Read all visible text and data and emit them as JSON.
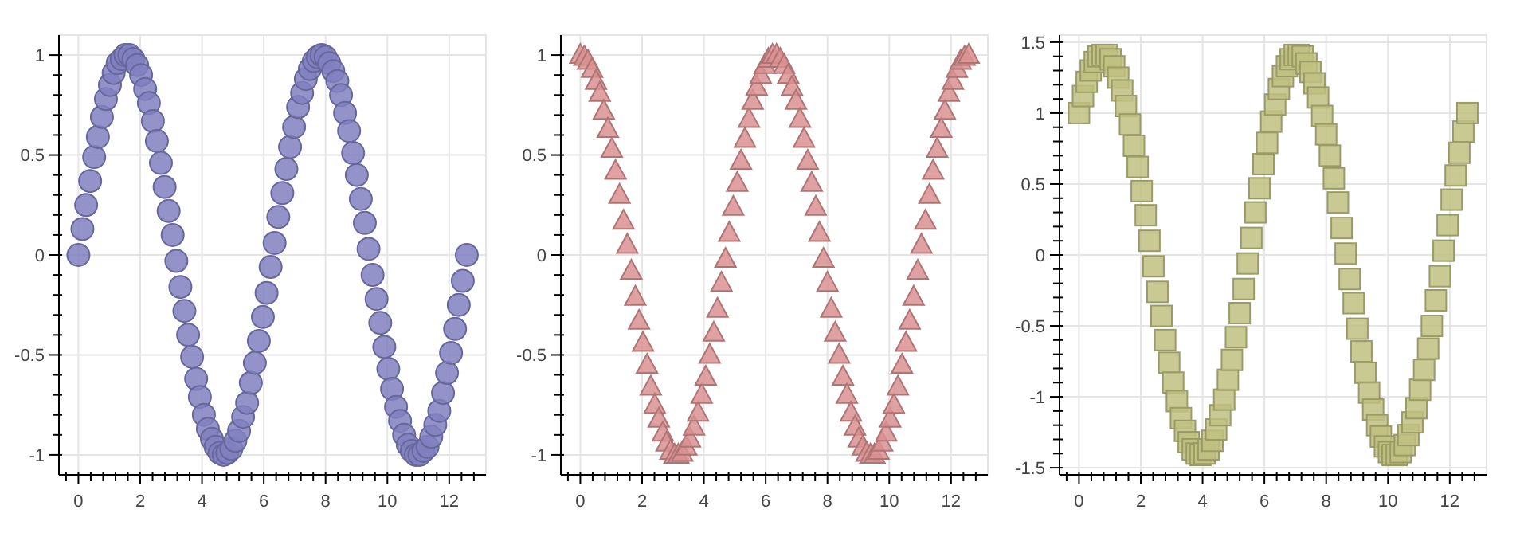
{
  "chart_data": [
    {
      "type": "scatter",
      "marker": "circle",
      "grid": true,
      "xlim": [
        -0.63,
        13.19
      ],
      "ylim": [
        -1.1,
        1.1
      ],
      "xticks": [
        {
          "value": -0.4,
          "label": null
        },
        0,
        {
          "value": 0.4,
          "label": null
        },
        {
          "value": 0.8,
          "label": null
        },
        {
          "value": 1.2,
          "label": null
        },
        {
          "value": 1.6,
          "label": null
        },
        2,
        {
          "value": 2.4,
          "label": null
        },
        {
          "value": 2.8,
          "label": null
        },
        {
          "value": 3.2,
          "label": null
        },
        {
          "value": 3.6,
          "label": null
        },
        4,
        {
          "value": 4.4,
          "label": null
        },
        {
          "value": 4.8,
          "label": null
        },
        {
          "value": 5.2,
          "label": null
        },
        {
          "value": 5.6,
          "label": null
        },
        6,
        {
          "value": 6.4,
          "label": null
        },
        {
          "value": 6.8,
          "label": null
        },
        {
          "value": 7.2,
          "label": null
        },
        {
          "value": 7.6,
          "label": null
        },
        8,
        {
          "value": 8.4,
          "label": null
        },
        {
          "value": 8.8,
          "label": null
        },
        {
          "value": 9.2,
          "label": null
        },
        {
          "value": 9.6,
          "label": null
        },
        10,
        {
          "value": 10.4,
          "label": null
        },
        {
          "value": 10.8,
          "label": null
        },
        {
          "value": 11.2,
          "label": null
        },
        {
          "value": 11.6,
          "label": null
        },
        12,
        {
          "value": 12.4,
          "label": null
        },
        {
          "value": 12.8,
          "label": null
        }
      ],
      "yticks": [
        -1,
        {
          "value": -0.9,
          "label": null
        },
        {
          "value": -0.8,
          "label": null
        },
        {
          "value": -0.7,
          "label": null
        },
        {
          "value": -0.6,
          "label": null
        },
        -0.5,
        {
          "value": -0.4,
          "label": null
        },
        {
          "value": -0.3,
          "label": null
        },
        {
          "value": -0.2,
          "label": null
        },
        {
          "value": -0.1,
          "label": null
        },
        0,
        {
          "value": 0.1,
          "label": null
        },
        {
          "value": 0.2,
          "label": null
        },
        {
          "value": 0.3,
          "label": null
        },
        {
          "value": 0.4,
          "label": null
        },
        0.5,
        {
          "value": 0.6,
          "label": null
        },
        {
          "value": 0.7,
          "label": null
        },
        {
          "value": 0.8,
          "label": null
        },
        {
          "value": 0.9,
          "label": null
        },
        1
      ],
      "x": [
        0,
        0.13,
        0.25,
        0.38,
        0.51,
        0.63,
        0.76,
        0.89,
        1.02,
        1.14,
        1.27,
        1.4,
        1.52,
        1.65,
        1.78,
        1.9,
        2.03,
        2.16,
        2.28,
        2.41,
        2.54,
        2.67,
        2.79,
        2.92,
        3.05,
        3.17,
        3.3,
        3.43,
        3.55,
        3.68,
        3.81,
        3.93,
        4.06,
        4.19,
        4.32,
        4.44,
        4.57,
        4.7,
        4.82,
        4.95,
        5.08,
        5.2,
        5.33,
        5.46,
        5.58,
        5.71,
        5.84,
        5.97,
        6.09,
        6.22,
        6.35,
        6.47,
        6.6,
        6.73,
        6.85,
        6.98,
        7.11,
        7.24,
        7.36,
        7.49,
        7.62,
        7.74,
        7.87,
        8,
        8.12,
        8.25,
        8.38,
        8.5,
        8.63,
        8.76,
        8.89,
        9.01,
        9.14,
        9.27,
        9.39,
        9.52,
        9.65,
        9.77,
        9.9,
        10.03,
        10.15,
        10.28,
        10.41,
        10.54,
        10.66,
        10.79,
        10.92,
        11.04,
        11.17,
        11.3,
        11.42,
        11.55,
        11.68,
        11.8,
        11.93,
        12.06,
        12.19,
        12.31,
        12.44,
        12.57
      ],
      "series": [
        {
          "color": "#8080c0",
          "values": [
            0,
            0.13,
            0.25,
            0.37,
            0.49,
            0.59,
            0.69,
            0.78,
            0.85,
            0.91,
            0.96,
            0.98,
            1,
            1,
            0.98,
            0.95,
            0.9,
            0.83,
            0.76,
            0.67,
            0.57,
            0.46,
            0.34,
            0.22,
            0.1,
            -0.03,
            -0.16,
            -0.28,
            -0.4,
            -0.51,
            -0.62,
            -0.71,
            -0.8,
            -0.87,
            -0.92,
            -0.96,
            -0.99,
            -1,
            -0.99,
            -0.97,
            -0.93,
            -0.88,
            -0.81,
            -0.74,
            -0.64,
            -0.54,
            -0.43,
            -0.31,
            -0.19,
            -0.06,
            0.06,
            0.19,
            0.31,
            0.43,
            0.54,
            0.64,
            0.74,
            0.81,
            0.88,
            0.93,
            0.97,
            0.99,
            1,
            0.99,
            0.96,
            0.92,
            0.87,
            0.8,
            0.71,
            0.62,
            0.51,
            0.4,
            0.28,
            0.16,
            0.03,
            -0.1,
            -0.22,
            -0.34,
            -0.46,
            -0.57,
            -0.67,
            -0.76,
            -0.83,
            -0.9,
            -0.95,
            -0.98,
            -1,
            -1,
            -0.98,
            -0.96,
            -0.91,
            -0.85,
            -0.78,
            -0.69,
            -0.59,
            -0.49,
            -0.37,
            -0.25,
            -0.13,
            0
          ]
        }
      ]
    },
    {
      "type": "scatter",
      "marker": "triangle",
      "grid": true,
      "xlim": [
        -0.63,
        13.19
      ],
      "ylim": [
        -1.1,
        1.1
      ],
      "xticks": [
        {
          "value": -0.4,
          "label": null
        },
        0,
        {
          "value": 0.4,
          "label": null
        },
        {
          "value": 0.8,
          "label": null
        },
        {
          "value": 1.2,
          "label": null
        },
        {
          "value": 1.6,
          "label": null
        },
        2,
        {
          "value": 2.4,
          "label": null
        },
        {
          "value": 2.8,
          "label": null
        },
        {
          "value": 3.2,
          "label": null
        },
        {
          "value": 3.6,
          "label": null
        },
        4,
        {
          "value": 4.4,
          "label": null
        },
        {
          "value": 4.8,
          "label": null
        },
        {
          "value": 5.2,
          "label": null
        },
        {
          "value": 5.6,
          "label": null
        },
        6,
        {
          "value": 6.4,
          "label": null
        },
        {
          "value": 6.8,
          "label": null
        },
        {
          "value": 7.2,
          "label": null
        },
        {
          "value": 7.6,
          "label": null
        },
        8,
        {
          "value": 8.4,
          "label": null
        },
        {
          "value": 8.8,
          "label": null
        },
        {
          "value": 9.2,
          "label": null
        },
        {
          "value": 9.6,
          "label": null
        },
        10,
        {
          "value": 10.4,
          "label": null
        },
        {
          "value": 10.8,
          "label": null
        },
        {
          "value": 11.2,
          "label": null
        },
        {
          "value": 11.6,
          "label": null
        },
        12,
        {
          "value": 12.4,
          "label": null
        },
        {
          "value": 12.8,
          "label": null
        }
      ],
      "yticks": [
        -1,
        {
          "value": -0.9,
          "label": null
        },
        {
          "value": -0.8,
          "label": null
        },
        {
          "value": -0.7,
          "label": null
        },
        {
          "value": -0.6,
          "label": null
        },
        -0.5,
        {
          "value": -0.4,
          "label": null
        },
        {
          "value": -0.3,
          "label": null
        },
        {
          "value": -0.2,
          "label": null
        },
        {
          "value": -0.1,
          "label": null
        },
        0,
        {
          "value": 0.1,
          "label": null
        },
        {
          "value": 0.2,
          "label": null
        },
        {
          "value": 0.3,
          "label": null
        },
        {
          "value": 0.4,
          "label": null
        },
        0.5,
        {
          "value": 0.6,
          "label": null
        },
        {
          "value": 0.7,
          "label": null
        },
        {
          "value": 0.8,
          "label": null
        },
        {
          "value": 0.9,
          "label": null
        },
        1
      ],
      "x": [
        0,
        0.13,
        0.25,
        0.38,
        0.51,
        0.63,
        0.76,
        0.89,
        1.02,
        1.14,
        1.27,
        1.4,
        1.52,
        1.65,
        1.78,
        1.9,
        2.03,
        2.16,
        2.28,
        2.41,
        2.54,
        2.67,
        2.79,
        2.92,
        3.05,
        3.17,
        3.3,
        3.43,
        3.55,
        3.68,
        3.81,
        3.93,
        4.06,
        4.19,
        4.32,
        4.44,
        4.57,
        4.7,
        4.82,
        4.95,
        5.08,
        5.2,
        5.33,
        5.46,
        5.58,
        5.71,
        5.84,
        5.97,
        6.09,
        6.22,
        6.35,
        6.47,
        6.6,
        6.73,
        6.85,
        6.98,
        7.11,
        7.24,
        7.36,
        7.49,
        7.62,
        7.74,
        7.87,
        8,
        8.12,
        8.25,
        8.38,
        8.5,
        8.63,
        8.76,
        8.89,
        9.01,
        9.14,
        9.27,
        9.39,
        9.52,
        9.65,
        9.77,
        9.9,
        10.03,
        10.15,
        10.28,
        10.41,
        10.54,
        10.66,
        10.79,
        10.92,
        11.04,
        11.17,
        11.3,
        11.42,
        11.55,
        11.68,
        11.8,
        11.93,
        12.06,
        12.19,
        12.31,
        12.44,
        12.57
      ],
      "series": [
        {
          "color": "#d99090",
          "values": [
            1,
            0.99,
            0.97,
            0.93,
            0.87,
            0.81,
            0.72,
            0.63,
            0.53,
            0.42,
            0.3,
            0.17,
            0.05,
            -0.08,
            -0.21,
            -0.33,
            -0.44,
            -0.55,
            -0.66,
            -0.75,
            -0.82,
            -0.89,
            -0.94,
            -0.98,
            -1,
            -1,
            -0.99,
            -0.96,
            -0.92,
            -0.86,
            -0.79,
            -0.7,
            -0.61,
            -0.5,
            -0.39,
            -0.27,
            -0.14,
            -0.02,
            0.11,
            0.24,
            0.36,
            0.47,
            0.58,
            0.68,
            0.77,
            0.84,
            0.9,
            0.95,
            0.98,
            1,
            1,
            0.98,
            0.95,
            0.9,
            0.84,
            0.77,
            0.68,
            0.58,
            0.47,
            0.36,
            0.24,
            0.11,
            -0.02,
            -0.14,
            -0.27,
            -0.39,
            -0.5,
            -0.61,
            -0.7,
            -0.79,
            -0.86,
            -0.92,
            -0.96,
            -0.99,
            -1,
            -1,
            -0.98,
            -0.94,
            -0.89,
            -0.82,
            -0.75,
            -0.66,
            -0.55,
            -0.44,
            -0.33,
            -0.21,
            -0.08,
            0.05,
            0.17,
            0.3,
            0.42,
            0.53,
            0.63,
            0.72,
            0.81,
            0.87,
            0.93,
            0.97,
            0.99,
            1
          ]
        }
      ]
    },
    {
      "type": "scatter",
      "marker": "square",
      "grid": true,
      "xlim": [
        -0.63,
        13.19
      ],
      "ylim": [
        -1.55,
        1.55
      ],
      "xticks": [
        {
          "value": -0.4,
          "label": null
        },
        0,
        {
          "value": 0.4,
          "label": null
        },
        {
          "value": 0.8,
          "label": null
        },
        {
          "value": 1.2,
          "label": null
        },
        {
          "value": 1.6,
          "label": null
        },
        2,
        {
          "value": 2.4,
          "label": null
        },
        {
          "value": 2.8,
          "label": null
        },
        {
          "value": 3.2,
          "label": null
        },
        {
          "value": 3.6,
          "label": null
        },
        4,
        {
          "value": 4.4,
          "label": null
        },
        {
          "value": 4.8,
          "label": null
        },
        {
          "value": 5.2,
          "label": null
        },
        {
          "value": 5.6,
          "label": null
        },
        6,
        {
          "value": 6.4,
          "label": null
        },
        {
          "value": 6.8,
          "label": null
        },
        {
          "value": 7.2,
          "label": null
        },
        {
          "value": 7.6,
          "label": null
        },
        8,
        {
          "value": 8.4,
          "label": null
        },
        {
          "value": 8.8,
          "label": null
        },
        {
          "value": 9.2,
          "label": null
        },
        {
          "value": 9.6,
          "label": null
        },
        10,
        {
          "value": 10.4,
          "label": null
        },
        {
          "value": 10.8,
          "label": null
        },
        {
          "value": 11.2,
          "label": null
        },
        {
          "value": 11.6,
          "label": null
        },
        12,
        {
          "value": 12.4,
          "label": null
        },
        {
          "value": 12.8,
          "label": null
        }
      ],
      "yticks": [
        -1.5,
        {
          "value": -1.4,
          "label": null
        },
        {
          "value": -1.3,
          "label": null
        },
        {
          "value": -1.2,
          "label": null
        },
        {
          "value": -1.1,
          "label": null
        },
        -1,
        {
          "value": -0.9,
          "label": null
        },
        {
          "value": -0.8,
          "label": null
        },
        {
          "value": -0.7,
          "label": null
        },
        {
          "value": -0.6,
          "label": null
        },
        -0.5,
        {
          "value": -0.4,
          "label": null
        },
        {
          "value": -0.3,
          "label": null
        },
        {
          "value": -0.2,
          "label": null
        },
        {
          "value": -0.1,
          "label": null
        },
        0,
        {
          "value": 0.1,
          "label": null
        },
        {
          "value": 0.2,
          "label": null
        },
        {
          "value": 0.3,
          "label": null
        },
        {
          "value": 0.4,
          "label": null
        },
        0.5,
        {
          "value": 0.6,
          "label": null
        },
        {
          "value": 0.7,
          "label": null
        },
        {
          "value": 0.8,
          "label": null
        },
        {
          "value": 0.9,
          "label": null
        },
        1,
        {
          "value": 1.1,
          "label": null
        },
        {
          "value": 1.2,
          "label": null
        },
        {
          "value": 1.3,
          "label": null
        },
        {
          "value": 1.4,
          "label": null
        },
        1.5
      ],
      "x": [
        0,
        0.13,
        0.25,
        0.38,
        0.51,
        0.63,
        0.76,
        0.89,
        1.02,
        1.14,
        1.27,
        1.4,
        1.52,
        1.65,
        1.78,
        1.9,
        2.03,
        2.16,
        2.28,
        2.41,
        2.54,
        2.67,
        2.79,
        2.92,
        3.05,
        3.17,
        3.3,
        3.43,
        3.55,
        3.68,
        3.81,
        3.93,
        4.06,
        4.19,
        4.32,
        4.44,
        4.57,
        4.7,
        4.82,
        4.95,
        5.08,
        5.2,
        5.33,
        5.46,
        5.58,
        5.71,
        5.84,
        5.97,
        6.09,
        6.22,
        6.35,
        6.47,
        6.6,
        6.73,
        6.85,
        6.98,
        7.11,
        7.24,
        7.36,
        7.49,
        7.62,
        7.74,
        7.87,
        8,
        8.12,
        8.25,
        8.38,
        8.5,
        8.63,
        8.76,
        8.89,
        9.01,
        9.14,
        9.27,
        9.39,
        9.52,
        9.65,
        9.77,
        9.9,
        10.03,
        10.15,
        10.28,
        10.41,
        10.54,
        10.66,
        10.79,
        10.92,
        11.04,
        11.17,
        11.3,
        11.42,
        11.55,
        11.68,
        11.8,
        11.93,
        12.06,
        12.19,
        12.31,
        12.44,
        12.57
      ],
      "series": [
        {
          "color": "#c0c080",
          "values": [
            1,
            1.12,
            1.22,
            1.3,
            1.36,
            1.4,
            1.41,
            1.41,
            1.38,
            1.33,
            1.25,
            1.16,
            1.05,
            0.92,
            0.77,
            0.62,
            0.45,
            0.28,
            0.1,
            -0.08,
            -0.26,
            -0.43,
            -0.6,
            -0.76,
            -0.9,
            -1.03,
            -1.15,
            -1.24,
            -1.32,
            -1.37,
            -1.4,
            -1.41,
            -1.4,
            -1.37,
            -1.31,
            -1.23,
            -1.13,
            -1.02,
            -0.88,
            -0.74,
            -0.58,
            -0.41,
            -0.24,
            -0.06,
            0.12,
            0.3,
            0.47,
            0.64,
            0.79,
            0.94,
            1.06,
            1.17,
            1.26,
            1.33,
            1.38,
            1.41,
            1.41,
            1.4,
            1.35,
            1.29,
            1.21,
            1.11,
            0.98,
            0.85,
            0.7,
            0.54,
            0.37,
            0.19,
            0.01,
            -0.17,
            -0.34,
            -0.52,
            -0.68,
            -0.83,
            -0.97,
            -1.09,
            -1.2,
            -1.28,
            -1.35,
            -1.39,
            -1.41,
            -1.41,
            -1.39,
            -1.34,
            -1.27,
            -1.18,
            -1.08,
            -0.95,
            -0.81,
            -0.66,
            -0.5,
            -0.32,
            -0.15,
            0.03,
            0.21,
            0.39,
            0.56,
            0.72,
            0.87,
            1
          ]
        }
      ]
    }
  ]
}
